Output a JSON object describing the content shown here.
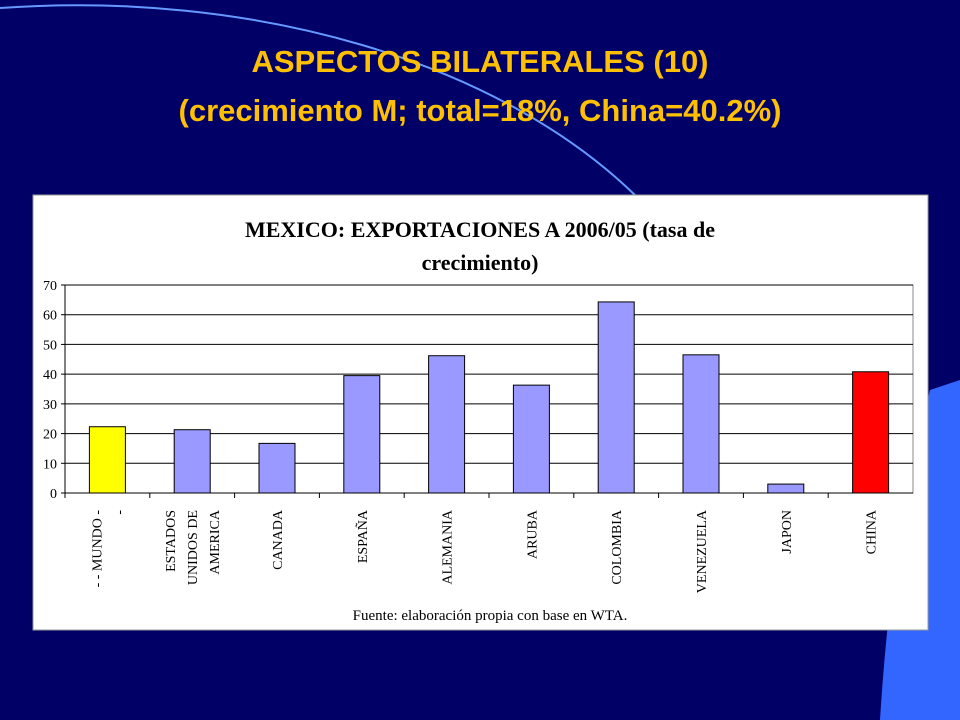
{
  "slide": {
    "title": "ASPECTOS BILATERALES (10)",
    "subtitle": "(crecimiento M; total=18%, China=40.2%)"
  },
  "chart_data": {
    "type": "bar",
    "title": [
      "MEXICO: EXPORTACIONES A 2006/05 (tasa de",
      "crecimiento)"
    ],
    "categories": [
      [
        "- - MUNDO -",
        "-"
      ],
      [
        "ESTADOS",
        "UNIDOS DE",
        "AMERICA"
      ],
      [
        "CANADA"
      ],
      [
        "ESPAÑA"
      ],
      [
        "ALEMANIA"
      ],
      [
        "ARUBA"
      ],
      [
        "COLOMBIA"
      ],
      [
        "VENEZUELA"
      ],
      [
        "JAPON"
      ],
      [
        "CHINA"
      ]
    ],
    "values": [
      22.3,
      21.3,
      16.7,
      39.5,
      46.2,
      36.3,
      64.3,
      46.5,
      3,
      40.8
    ],
    "colors": [
      "#ffff00",
      "#9999ff",
      "#9999ff",
      "#9999ff",
      "#9999ff",
      "#9999ff",
      "#9999ff",
      "#9999ff",
      "#9999ff",
      "#ff0000"
    ],
    "ylim": [
      0,
      70
    ],
    "yticks": [
      0,
      10,
      20,
      30,
      40,
      50,
      60,
      70
    ],
    "grid": true,
    "note": "Fuente: elaboración propia con base en WTA."
  }
}
